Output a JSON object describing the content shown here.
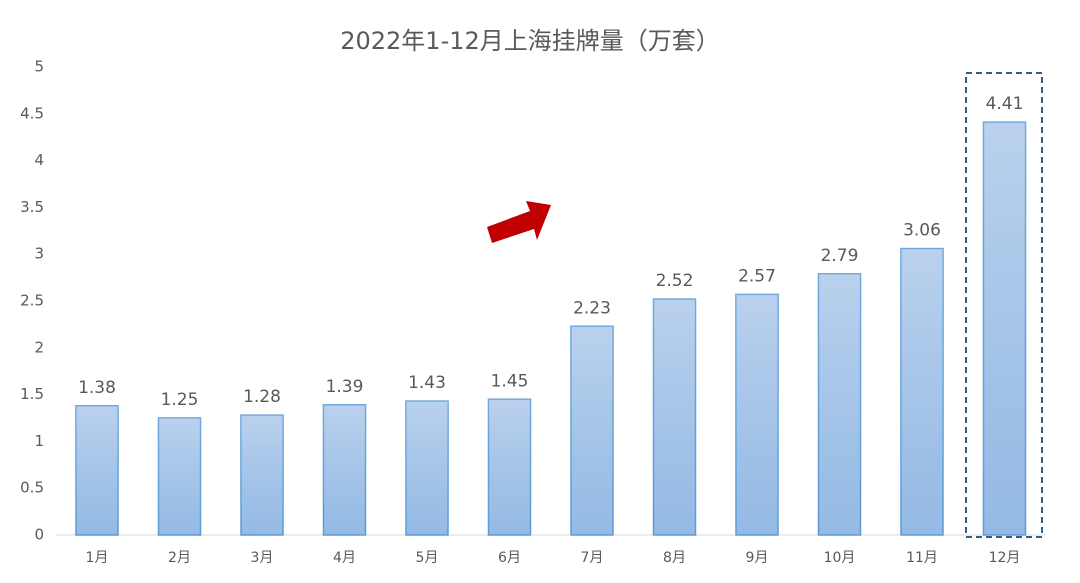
{
  "chart_data": {
    "type": "bar",
    "title": "2022年1-12月上海挂牌量（万套）",
    "categories": [
      "1月",
      "2月",
      "3月",
      "4月",
      "5月",
      "6月",
      "7月",
      "8月",
      "9月",
      "10月",
      "11月",
      "12月"
    ],
    "values": [
      1.38,
      1.25,
      1.28,
      1.39,
      1.43,
      1.45,
      2.23,
      2.52,
      2.57,
      2.79,
      3.06,
      4.41
    ],
    "color": "#a3c2e8",
    "ylim": [
      0,
      5
    ],
    "yticks": [
      0,
      0.5,
      1,
      1.5,
      2,
      2.5,
      3,
      3.5,
      4,
      4.5,
      5
    ],
    "grid": false
  }
}
